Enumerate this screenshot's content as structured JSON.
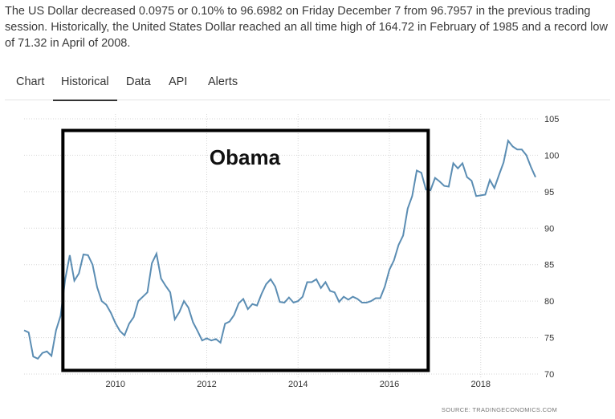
{
  "description": "The US Dollar decreased 0.0975 or 0.10% to 96.6982 on Friday December 7 from 96.7957 in the previous trading session. Historically, the United States Dollar reached an all time high of 164.72 in February of 1985 and a record low of 71.32 in April of 2008.",
  "tabs": [
    {
      "label": "Chart",
      "active": false
    },
    {
      "label": "Historical",
      "active": true
    },
    {
      "label": "Data",
      "active": false
    },
    {
      "label": "API",
      "active": false
    },
    {
      "label": "Alerts",
      "active": false
    }
  ],
  "colors": {
    "line": "#5b8db3",
    "box": "#000000",
    "grid": "#d6d6d6"
  },
  "chart_data": {
    "type": "line",
    "title": "",
    "xlabel": "",
    "ylabel": "",
    "xlim": [
      2008.0,
      2019.2
    ],
    "ylim": [
      70,
      105
    ],
    "y_ticks": [
      70,
      75,
      80,
      85,
      90,
      95,
      100,
      105
    ],
    "x_ticks": [
      2010,
      2012,
      2014,
      2016,
      2018
    ],
    "x_tick_labels": [
      "2010",
      "2012",
      "2014",
      "2016",
      "2018"
    ],
    "grid": true,
    "y_axis_side": "right",
    "series": [
      {
        "name": "",
        "points": [
          [
            2008.0,
            76.0
          ],
          [
            2008.1,
            75.7
          ],
          [
            2008.2,
            72.4
          ],
          [
            2008.3,
            72.1
          ],
          [
            2008.4,
            72.9
          ],
          [
            2008.5,
            73.1
          ],
          [
            2008.6,
            72.5
          ],
          [
            2008.7,
            76.0
          ],
          [
            2008.8,
            78.0
          ],
          [
            2008.9,
            83.0
          ],
          [
            2009.0,
            86.3
          ],
          [
            2009.1,
            82.8
          ],
          [
            2009.2,
            83.8
          ],
          [
            2009.3,
            86.4
          ],
          [
            2009.4,
            86.3
          ],
          [
            2009.5,
            85.0
          ],
          [
            2009.6,
            81.9
          ],
          [
            2009.7,
            80.0
          ],
          [
            2009.8,
            79.5
          ],
          [
            2009.9,
            78.4
          ],
          [
            2010.0,
            77.0
          ],
          [
            2010.1,
            75.9
          ],
          [
            2010.2,
            75.3
          ],
          [
            2010.3,
            76.9
          ],
          [
            2010.4,
            77.8
          ],
          [
            2010.5,
            80.0
          ],
          [
            2010.6,
            80.6
          ],
          [
            2010.7,
            81.2
          ],
          [
            2010.8,
            85.2
          ],
          [
            2010.9,
            86.5
          ],
          [
            2011.0,
            83.1
          ],
          [
            2011.1,
            82.1
          ],
          [
            2011.2,
            81.2
          ],
          [
            2011.3,
            77.5
          ],
          [
            2011.4,
            78.5
          ],
          [
            2011.5,
            80.0
          ],
          [
            2011.6,
            79.1
          ],
          [
            2011.7,
            77.1
          ],
          [
            2011.8,
            75.9
          ],
          [
            2011.9,
            74.6
          ],
          [
            2012.0,
            74.9
          ],
          [
            2012.1,
            74.6
          ],
          [
            2012.2,
            74.8
          ],
          [
            2012.3,
            74.3
          ],
          [
            2012.4,
            76.9
          ],
          [
            2012.5,
            77.2
          ],
          [
            2012.6,
            78.1
          ],
          [
            2012.7,
            79.7
          ],
          [
            2012.8,
            80.3
          ],
          [
            2012.9,
            78.9
          ],
          [
            2013.0,
            79.6
          ],
          [
            2013.1,
            79.4
          ],
          [
            2013.2,
            81.0
          ],
          [
            2013.3,
            82.3
          ],
          [
            2013.4,
            83.0
          ],
          [
            2013.5,
            82.0
          ],
          [
            2013.6,
            79.9
          ],
          [
            2013.7,
            79.8
          ],
          [
            2013.8,
            80.5
          ],
          [
            2013.9,
            79.8
          ],
          [
            2014.0,
            80.0
          ],
          [
            2014.1,
            80.6
          ],
          [
            2014.2,
            82.6
          ],
          [
            2014.3,
            82.6
          ],
          [
            2014.4,
            83.0
          ],
          [
            2014.5,
            81.8
          ],
          [
            2014.6,
            82.6
          ],
          [
            2014.7,
            81.4
          ],
          [
            2014.8,
            81.2
          ],
          [
            2014.9,
            79.9
          ],
          [
            2015.0,
            80.6
          ],
          [
            2015.1,
            80.2
          ],
          [
            2015.2,
            80.6
          ],
          [
            2015.3,
            80.3
          ],
          [
            2015.4,
            79.8
          ],
          [
            2015.5,
            79.8
          ],
          [
            2015.6,
            80.0
          ],
          [
            2015.7,
            80.4
          ],
          [
            2015.8,
            80.4
          ],
          [
            2015.9,
            82.0
          ],
          [
            2016.0,
            84.3
          ],
          [
            2016.1,
            85.6
          ],
          [
            2016.2,
            87.7
          ],
          [
            2016.3,
            89.0
          ],
          [
            2016.4,
            92.7
          ],
          [
            2016.5,
            94.4
          ],
          [
            2016.6,
            97.9
          ],
          [
            2016.7,
            97.6
          ],
          [
            2016.8,
            95.3
          ],
          [
            2016.9,
            95.2
          ],
          [
            2017.0,
            96.9
          ],
          [
            2017.1,
            96.4
          ],
          [
            2017.2,
            95.8
          ],
          [
            2017.3,
            95.7
          ],
          [
            2017.4,
            98.9
          ],
          [
            2017.5,
            98.2
          ],
          [
            2017.6,
            98.9
          ],
          [
            2017.7,
            97.0
          ],
          [
            2017.8,
            96.5
          ],
          [
            2017.9,
            94.4
          ],
          [
            2018.0,
            94.5
          ],
          [
            2018.1,
            94.6
          ],
          [
            2018.2,
            96.6
          ],
          [
            2018.3,
            95.5
          ],
          [
            2018.4,
            97.3
          ],
          [
            2018.5,
            99.0
          ],
          [
            2018.6,
            102.0
          ],
          [
            2018.7,
            101.2
          ],
          [
            2018.8,
            100.8
          ],
          [
            2018.9,
            100.8
          ],
          [
            2019.0,
            100.0
          ],
          [
            2019.1,
            98.4
          ],
          [
            2019.2,
            97.0
          ]
        ]
      }
    ],
    "annotation": {
      "text": "Obama",
      "x_start": 2008.85,
      "x_end": 2016.85,
      "y_top": 103.4,
      "y_bottom": 70.5
    },
    "source": "SOURCE: TRADINGECONOMICS.COM"
  }
}
